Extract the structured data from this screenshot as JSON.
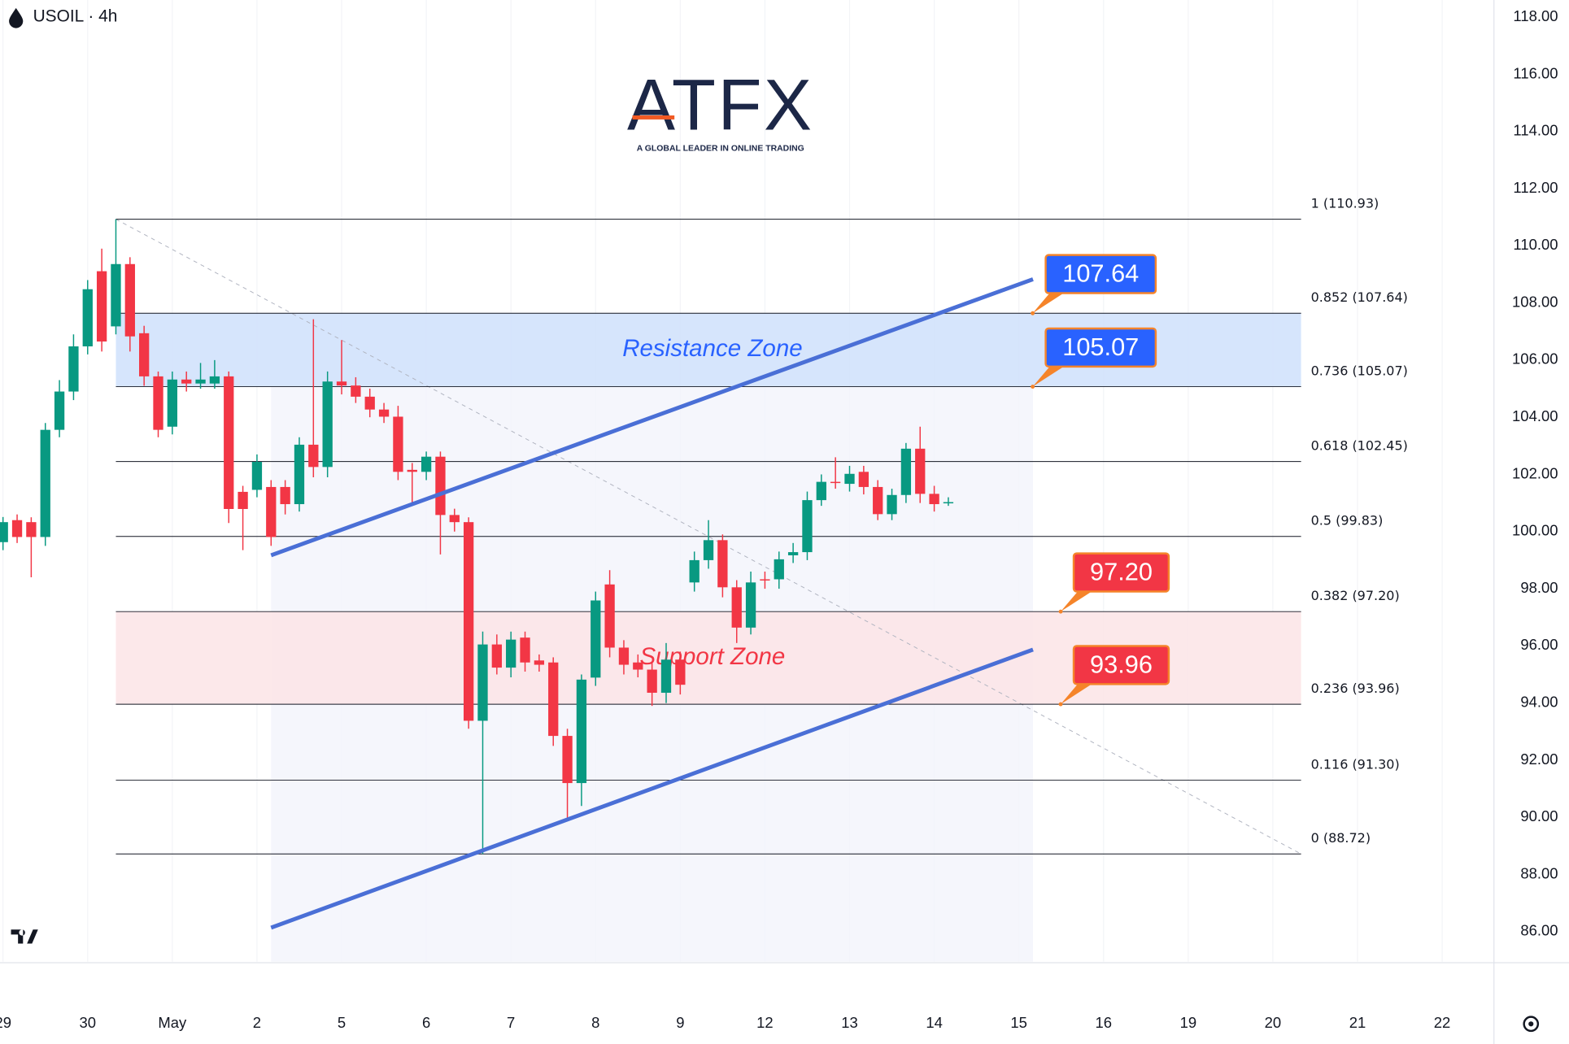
{
  "chart_data": {
    "type": "candlestick",
    "symbol": "USOIL · 4h",
    "logo": "ATFX",
    "tagline": "A GLOBAL LEADER IN ONLINE TRADING",
    "up_color": "#089981",
    "down_color": "#f23645",
    "grid": true,
    "x": [
      0,
      1,
      2,
      3,
      4,
      5,
      6,
      7,
      8,
      9,
      10,
      11,
      12,
      13,
      14,
      15,
      16,
      17,
      18,
      19,
      20,
      21,
      22,
      23,
      24,
      25,
      26,
      27,
      28,
      29,
      30,
      31,
      32,
      33,
      34,
      35,
      36,
      37,
      38,
      39,
      40,
      41,
      42,
      43,
      44,
      45,
      46,
      47,
      48,
      49,
      50,
      51,
      52,
      53,
      54,
      55,
      56,
      57,
      58,
      59,
      60,
      61,
      62,
      63,
      64,
      65,
      66,
      67
    ],
    "open": [
      99.63,
      100.4,
      100.33,
      99.81,
      103.56,
      104.9,
      106.48,
      109.11,
      107.18,
      109.36,
      106.94,
      105.43,
      103.67,
      105.32,
      105.18,
      105.18,
      105.43,
      101.39,
      101.46,
      101.56,
      101.56,
      100.96,
      103.04,
      102.26,
      105.25,
      105.11,
      104.72,
      104.27,
      104.02,
      102.16,
      102.09,
      102.62,
      100.58,
      100.33,
      93.38,
      96.05,
      95.24,
      96.29,
      95.49,
      95.42,
      92.85,
      91.2,
      94.89,
      98.15,
      95.94,
      95.42,
      95.17,
      94.36,
      95.52,
      98.22,
      99.0,
      99.7,
      98.05,
      96.64,
      98.33,
      98.33,
      99.17,
      99.28,
      101.1,
      101.74,
      101.67,
      102.09,
      101.56,
      100.61,
      101.28,
      102.9,
      101.32,
      101.03
    ],
    "high": [
      100.51,
      100.6,
      100.5,
      103.8,
      105.3,
      106.9,
      108.8,
      109.9,
      110.93,
      109.6,
      107.2,
      105.6,
      105.6,
      105.6,
      105.9,
      106.0,
      105.6,
      101.6,
      102.7,
      101.8,
      101.8,
      103.3,
      107.43,
      105.6,
      106.7,
      105.4,
      105.0,
      104.5,
      104.4,
      102.4,
      102.8,
      102.8,
      100.8,
      100.5,
      96.5,
      96.4,
      96.5,
      96.5,
      95.7,
      95.6,
      93.1,
      95.0,
      97.9,
      98.65,
      96.2,
      95.7,
      95.4,
      96.1,
      95.8,
      99.3,
      100.4,
      99.9,
      98.3,
      98.6,
      98.6,
      99.3,
      99.6,
      101.4,
      102.0,
      102.6,
      102.3,
      102.3,
      101.8,
      101.5,
      103.1,
      103.67,
      101.6,
      101.2
    ],
    "low": [
      99.35,
      99.6,
      98.4,
      99.5,
      103.3,
      104.6,
      106.2,
      106.3,
      106.9,
      106.3,
      105.1,
      103.3,
      103.4,
      104.9,
      105.0,
      105.0,
      100.3,
      99.35,
      101.2,
      99.5,
      100.6,
      100.7,
      101.9,
      101.9,
      104.8,
      104.5,
      104.0,
      103.8,
      101.8,
      101.0,
      101.8,
      99.2,
      100.0,
      93.1,
      88.72,
      95.0,
      94.9,
      95.1,
      95.1,
      92.5,
      89.97,
      90.4,
      94.6,
      95.6,
      95.0,
      94.9,
      93.9,
      94.0,
      94.3,
      97.9,
      98.7,
      97.7,
      96.1,
      96.4,
      98.0,
      98.0,
      98.9,
      99.0,
      100.9,
      101.5,
      101.4,
      101.3,
      100.4,
      100.4,
      101.0,
      101.0,
      100.7,
      100.9
    ],
    "close": [
      100.33,
      99.81,
      99.81,
      103.56,
      104.9,
      106.48,
      108.48,
      106.65,
      109.36,
      106.83,
      105.43,
      103.56,
      105.32,
      105.18,
      105.32,
      105.43,
      100.79,
      100.79,
      102.44,
      99.81,
      100.96,
      103.04,
      102.26,
      105.25,
      105.11,
      104.72,
      104.27,
      104.02,
      102.09,
      102.09,
      102.62,
      100.58,
      100.33,
      93.38,
      96.05,
      95.24,
      96.22,
      95.42,
      95.34,
      92.85,
      91.2,
      94.82,
      97.59,
      95.94,
      95.34,
      95.17,
      94.36,
      95.52,
      94.64,
      99.0,
      99.7,
      98.05,
      96.64,
      98.22,
      98.3,
      99.03,
      99.28,
      101.1,
      101.74,
      101.7,
      102.02,
      101.56,
      100.61,
      101.28,
      102.9,
      101.32,
      100.96,
      101.03
    ],
    "xlim": [
      -0.213,
      105.67
    ],
    "xticks": [
      {
        "value": 0,
        "label": "29"
      },
      {
        "value": 6,
        "label": "30"
      },
      {
        "value": 12,
        "label": "May"
      },
      {
        "value": 18,
        "label": "2"
      },
      {
        "value": 24,
        "label": "5"
      },
      {
        "value": 30,
        "label": "6"
      },
      {
        "value": 36,
        "label": "7"
      },
      {
        "value": 42,
        "label": "8"
      },
      {
        "value": 48,
        "label": "9"
      },
      {
        "value": 54,
        "label": "12"
      },
      {
        "value": 60,
        "label": "13"
      },
      {
        "value": 66,
        "label": "14"
      },
      {
        "value": 72,
        "label": "15"
      },
      {
        "value": 78,
        "label": "16"
      },
      {
        "value": 84,
        "label": "19"
      },
      {
        "value": 90,
        "label": "20"
      },
      {
        "value": 96,
        "label": "21"
      },
      {
        "value": 102,
        "label": "22"
      }
    ],
    "ylim": [
      84.95,
      118.6
    ],
    "yticks": [
      {
        "value": 86,
        "label": "86.00"
      },
      {
        "value": 88,
        "label": "88.00"
      },
      {
        "value": 90,
        "label": "90.00"
      },
      {
        "value": 92,
        "label": "92.00"
      },
      {
        "value": 94,
        "label": "94.00"
      },
      {
        "value": 96,
        "label": "96.00"
      },
      {
        "value": 98,
        "label": "98.00"
      },
      {
        "value": 100,
        "label": "100.00"
      },
      {
        "value": 102,
        "label": "102.00"
      },
      {
        "value": 104,
        "label": "104.00"
      },
      {
        "value": 106,
        "label": "106.00"
      },
      {
        "value": 108,
        "label": "108.00"
      },
      {
        "value": 110,
        "label": "110.00"
      },
      {
        "value": 112,
        "label": "112.00"
      },
      {
        "value": 114,
        "label": "114.00"
      },
      {
        "value": 116,
        "label": "116.00"
      },
      {
        "value": 118,
        "label": "118.00"
      }
    ],
    "fib_levels": [
      {
        "value": 110.93,
        "label": "1 (110.93)"
      },
      {
        "value": 107.64,
        "label": "0.852 (107.64)"
      },
      {
        "value": 105.07,
        "label": "0.736 (105.07)"
      },
      {
        "value": 102.45,
        "label": "0.618 (102.45)"
      },
      {
        "value": 99.83,
        "label": "0.5 (99.83)"
      },
      {
        "value": 97.2,
        "label": "0.382 (97.20)"
      },
      {
        "value": 93.96,
        "label": "0.236 (93.96)"
      },
      {
        "value": 91.3,
        "label": "0.116 (91.30)"
      },
      {
        "value": 88.72,
        "label": "0 (88.72)"
      }
    ],
    "zones": [
      {
        "name": "Resistance Zone",
        "color": "#2962ff",
        "fill": "#cfe0fb",
        "low": 105.07,
        "high": 107.64
      },
      {
        "name": "Support Zone",
        "color": "#f23645",
        "fill": "#fce4e6",
        "low": 93.96,
        "high": 97.2
      }
    ],
    "callouts": [
      {
        "value": 107.64,
        "label": "107.64",
        "color": "#2962ff"
      },
      {
        "value": 105.07,
        "label": "105.07",
        "color": "#2962ff"
      },
      {
        "value": 97.2,
        "label": "97.20",
        "color": "#f23645"
      },
      {
        "value": 93.96,
        "label": "93.96",
        "color": "#f23645"
      }
    ],
    "trendlines": [
      {
        "x": [
          19,
          73
        ],
        "y": [
          99.17,
          108.83
        ],
        "color": "#4a6fd6"
      },
      {
        "x": [
          19,
          73
        ],
        "y": [
          86.14,
          95.87
        ],
        "color": "#4a6fd6"
      }
    ]
  }
}
